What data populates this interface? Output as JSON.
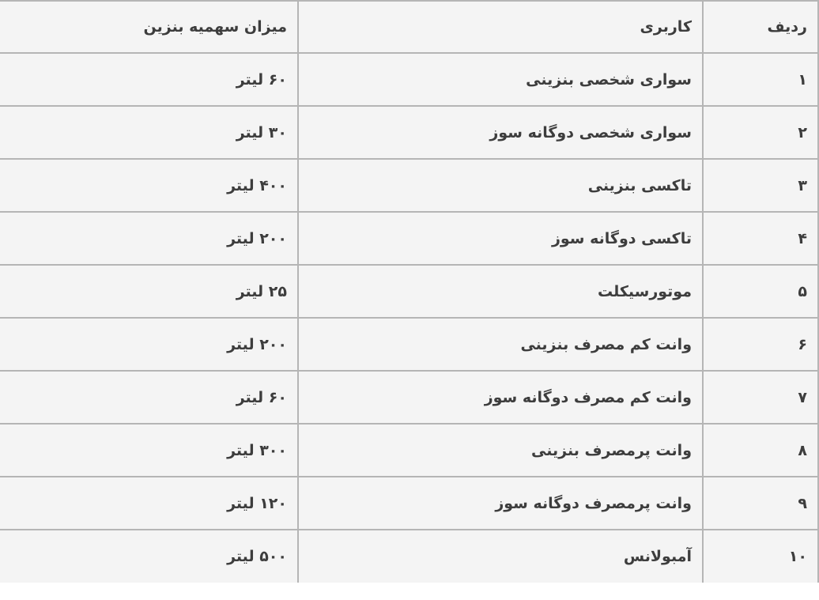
{
  "chart_data": {
    "type": "table",
    "direction": "rtl",
    "columns": [
      "ردیف",
      "کاربری",
      "میزان سهمیه بنزین"
    ],
    "rows": [
      {
        "no": "۱",
        "usage": "سواری شخصی بنزینی",
        "quota": "۶۰ لیتر",
        "quota_liters": 60,
        "row_number": 1
      },
      {
        "no": "۲",
        "usage": "سواری شخصی دوگانه سوز",
        "quota": "۳۰ لیتر",
        "quota_liters": 30,
        "row_number": 2
      },
      {
        "no": "۳",
        "usage": "تاکسی بنزینی",
        "quota": "۴۰۰ لیتر",
        "quota_liters": 400,
        "row_number": 3
      },
      {
        "no": "۴",
        "usage": "تاکسی دوگانه سوز",
        "quota": "۲۰۰ لیتر",
        "quota_liters": 200,
        "row_number": 4
      },
      {
        "no": "۵",
        "usage": "موتورسیکلت",
        "quota": "۲۵ لیتر",
        "quota_liters": 25,
        "row_number": 5
      },
      {
        "no": "۶",
        "usage": "وانت کم مصرف بنزینی",
        "quota": "۲۰۰ لیتر",
        "quota_liters": 200,
        "row_number": 6
      },
      {
        "no": "۷",
        "usage": "وانت کم مصرف دوگانه سوز",
        "quota": "۶۰ لیتر",
        "quota_liters": 60,
        "row_number": 7
      },
      {
        "no": "۸",
        "usage": "وانت پرمصرف بنزینی",
        "quota": "۳۰۰ لیتر",
        "quota_liters": 300,
        "row_number": 8
      },
      {
        "no": "۹",
        "usage": "وانت پرمصرف دوگانه سوز",
        "quota": "۱۲۰ لیتر",
        "quota_liters": 120,
        "row_number": 9
      },
      {
        "no": "۱۰",
        "usage": "آمبولانس",
        "quota": "۵۰۰ لیتر",
        "quota_liters": 500,
        "row_number": 10
      }
    ]
  },
  "colors": {
    "cell_background": "#f4f4f4",
    "border": "#b5b5b5",
    "text": "#3d3d3d"
  }
}
